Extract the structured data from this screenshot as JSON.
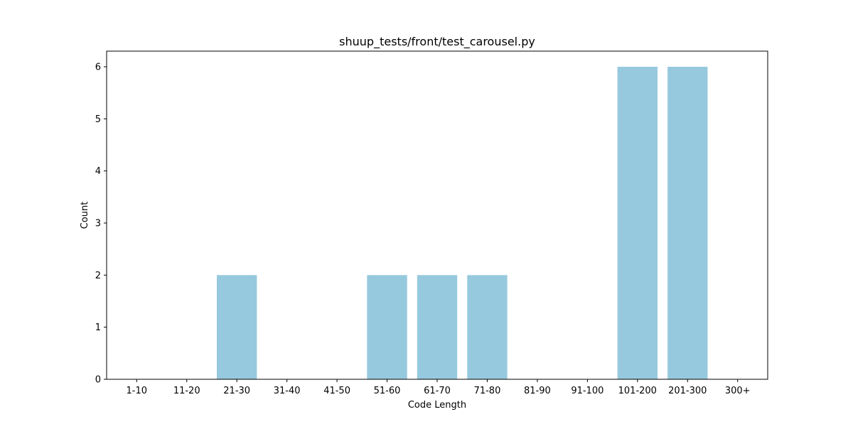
{
  "chart_data": {
    "type": "bar",
    "title": "shuup_tests/front/test_carousel.py",
    "xlabel": "Code Length",
    "ylabel": "Count",
    "categories": [
      "1-10",
      "11-20",
      "21-30",
      "31-40",
      "41-50",
      "51-60",
      "61-70",
      "71-80",
      "81-90",
      "91-100",
      "101-200",
      "201-300",
      "300+"
    ],
    "values": [
      0,
      0,
      2,
      0,
      0,
      2,
      2,
      2,
      0,
      0,
      6,
      6,
      0
    ],
    "ylim": [
      0,
      6.3
    ],
    "yticks": [
      "0",
      "1",
      "2",
      "3",
      "4",
      "5",
      "6"
    ],
    "grid": false,
    "legend": "none",
    "bar_color": "#96c9dd"
  }
}
